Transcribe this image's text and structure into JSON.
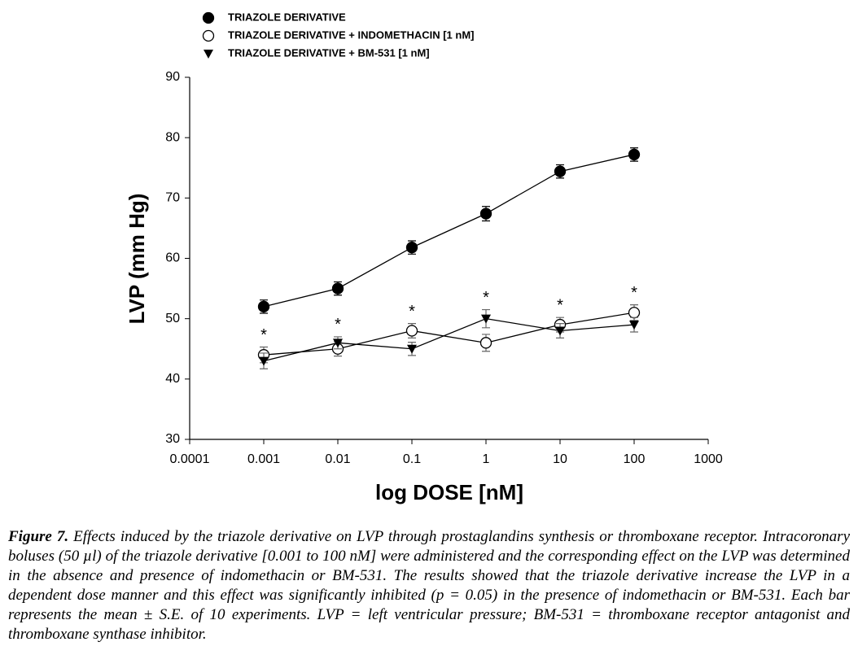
{
  "chart_data": {
    "type": "line",
    "x_label": "log DOSE [nM]",
    "y_label": "LVP (mm Hg)",
    "log_x": true,
    "xlim": [
      0.0001,
      1000
    ],
    "xticks": [
      0.0001,
      0.001,
      0.01,
      0.1,
      1,
      10,
      100,
      1000
    ],
    "ylim": [
      30,
      90
    ],
    "yticks": [
      30,
      40,
      50,
      60,
      70,
      80,
      90
    ],
    "x": [
      0.001,
      0.01,
      0.1,
      1,
      10,
      100
    ],
    "series": [
      {
        "name": "TRIAZOLE DERIVATIVE",
        "color": "#000000",
        "marker": "filled-circle",
        "values": [
          52,
          55,
          61.8,
          67.4,
          74.4,
          77.2
        ],
        "errors": [
          1.1,
          1.1,
          1.1,
          1.2,
          1.1,
          1.1
        ]
      },
      {
        "name": "TRIAZOLE DERIVATIVE + INDOMETHACIN [1 nM]",
        "color": "#000000",
        "marker": "open-circle",
        "values": [
          44,
          45,
          48,
          46,
          49,
          51
        ],
        "errors": [
          1.3,
          1.2,
          1.2,
          1.4,
          1.2,
          1.3
        ]
      },
      {
        "name": "TRIAZOLE DERIVATIVE + BM-531 [1 nM]",
        "color": "#000000",
        "marker": "triangle-down",
        "values": [
          43,
          46,
          45,
          50,
          48,
          49
        ],
        "errors": [
          1.3,
          1.0,
          1.1,
          1.5,
          1.2,
          1.2
        ]
      }
    ],
    "significance_labels": [
      "*",
      "*",
      "*",
      "*",
      "*",
      "*"
    ]
  },
  "caption": {
    "label": "Figure 7.",
    "text": "Effects induced by the triazole derivative on LVP through prostaglandins synthesis or thromboxane receptor. Intracoronary boluses (50 µl) of the triazole derivative [0.001 to 100 nM] were administered and the corresponding effect on the LVP was determined in the absence and presence of indomethacin or BM-531. The results showed that the triazole derivative increase the LVP in a dependent dose manner and this effect was significantly inhibited (p = 0.05) in the presence of indomethacin or BM-531. Each bar represents the mean ± S.E. of 10 experiments. LVP = left ventricular pressure; BM-531 = thromboxane receptor antagonist and thromboxane synthase inhibitor."
  }
}
